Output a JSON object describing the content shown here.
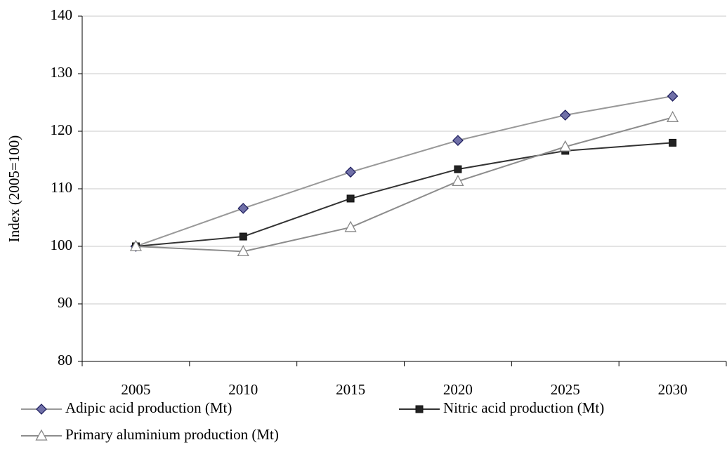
{
  "chart_data": {
    "type": "line",
    "y_label": "Index (2005=100)",
    "categories": [
      "2005",
      "2010",
      "2015",
      "2020",
      "2025",
      "2030"
    ],
    "series": [
      {
        "name": "Adipic acid production (Mt)",
        "color": "#999999",
        "marker": "diamond",
        "marker_color": "#7070a8",
        "values": [
          100,
          106.6,
          112.9,
          118.4,
          122.8,
          126.1
        ]
      },
      {
        "name": "Nitric acid production (Mt)",
        "color": "#333333",
        "marker": "square",
        "marker_color": "#222222",
        "values": [
          100,
          101.7,
          108.3,
          113.4,
          116.6,
          118.0
        ]
      },
      {
        "name": "Primary aluminium production (Mt)",
        "color": "#8c8c8c",
        "marker": "triangle",
        "marker_color": "#ffffff",
        "values": [
          100,
          99.1,
          103.3,
          111.3,
          117.3,
          122.4
        ]
      }
    ],
    "ylim": [
      80,
      140
    ],
    "yticks": [
      80,
      90,
      100,
      110,
      120,
      130,
      140
    ],
    "grid": true,
    "legend": "bottom"
  }
}
